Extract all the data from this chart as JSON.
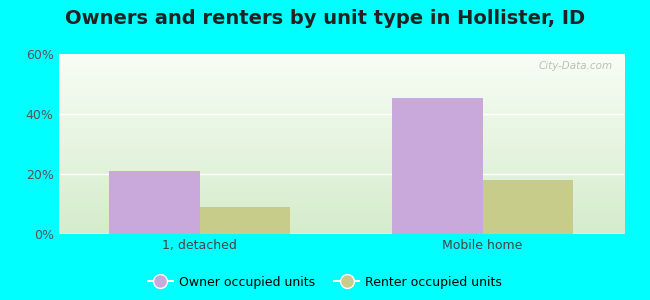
{
  "title": "Owners and renters by unit type in Hollister, ID",
  "categories": [
    "1, detached",
    "Mobile home"
  ],
  "owner_values": [
    21.0,
    45.5
  ],
  "renter_values": [
    9.0,
    18.0
  ],
  "owner_color": "#c9a8dc",
  "renter_color": "#c8cc8a",
  "ylim": [
    0,
    60
  ],
  "yticks": [
    0,
    20,
    40,
    60
  ],
  "ytick_labels": [
    "0%",
    "20%",
    "40%",
    "60%"
  ],
  "bar_width": 0.32,
  "outer_background": "#00ffff",
  "title_fontsize": 14,
  "legend_labels": [
    "Owner occupied units",
    "Renter occupied units"
  ],
  "watermark": "City-Data.com",
  "grid_color": "#c8e6c8",
  "bg_top": "#f5faf5",
  "bg_bottom": "#d8eecc"
}
